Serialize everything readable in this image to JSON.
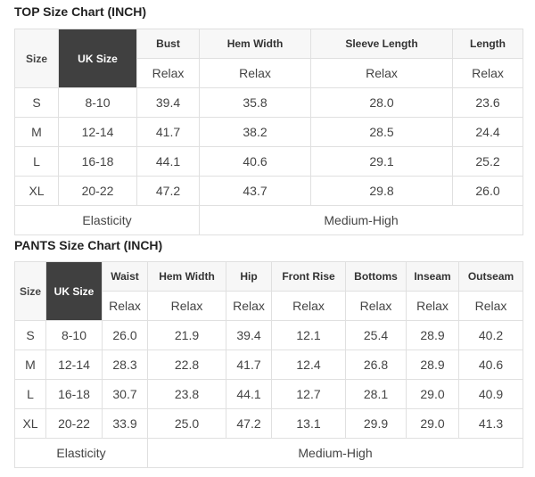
{
  "top": {
    "title": "TOP Size Chart (INCH)",
    "size_label": "Size",
    "uk_label": "UK Size",
    "columns": [
      "Bust",
      "Hem Width",
      "Sleeve Length",
      "Length"
    ],
    "sub": "Relax",
    "rows": [
      {
        "size": "S",
        "uk": "8-10",
        "values": [
          "39.4",
          "35.8",
          "28.0",
          "23.6"
        ]
      },
      {
        "size": "M",
        "uk": "12-14",
        "values": [
          "41.7",
          "38.2",
          "28.5",
          "24.4"
        ]
      },
      {
        "size": "L",
        "uk": "16-18",
        "values": [
          "44.1",
          "40.6",
          "29.1",
          "25.2"
        ]
      },
      {
        "size": "XL",
        "uk": "20-22",
        "values": [
          "47.2",
          "43.7",
          "29.8",
          "26.0"
        ]
      }
    ],
    "elasticity_label": "Elasticity",
    "elasticity_value": "Medium-High"
  },
  "pants": {
    "title": "PANTS Size Chart (INCH)",
    "size_label": "Size",
    "uk_label": "UK Size",
    "columns": [
      "Waist",
      "Hem Width",
      "Hip",
      "Front Rise",
      "Bottoms",
      "Inseam",
      "Outseam"
    ],
    "sub": "Relax",
    "rows": [
      {
        "size": "S",
        "uk": "8-10",
        "values": [
          "26.0",
          "21.9",
          "39.4",
          "12.1",
          "25.4",
          "28.9",
          "40.2"
        ]
      },
      {
        "size": "M",
        "uk": "12-14",
        "values": [
          "28.3",
          "22.8",
          "41.7",
          "12.4",
          "26.8",
          "28.9",
          "40.6"
        ]
      },
      {
        "size": "L",
        "uk": "16-18",
        "values": [
          "30.7",
          "23.8",
          "44.1",
          "12.7",
          "28.1",
          "29.0",
          "40.9"
        ]
      },
      {
        "size": "XL",
        "uk": "20-22",
        "values": [
          "33.9",
          "25.0",
          "47.2",
          "13.1",
          "29.9",
          "29.0",
          "41.3"
        ]
      }
    ],
    "elasticity_label": "Elasticity",
    "elasticity_value": "Medium-High"
  }
}
